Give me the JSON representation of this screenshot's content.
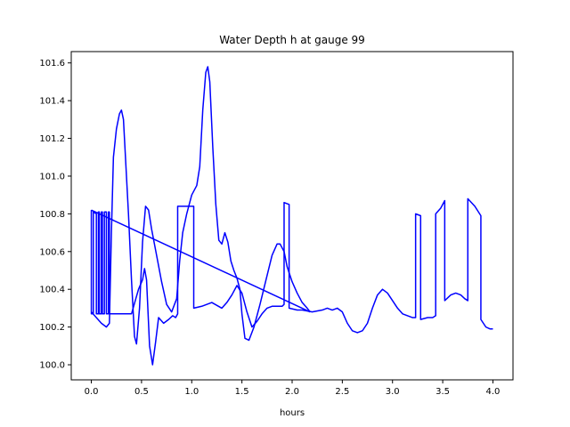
{
  "chart_data": {
    "type": "line",
    "title": "Water Depth h at gauge 99",
    "xlabel": "hours",
    "ylabel": "",
    "xlim": [
      -0.2,
      4.2
    ],
    "ylim": [
      99.92,
      101.66
    ],
    "grid": false,
    "legend": "none",
    "color": "#0000ff",
    "xticks": [
      0.0,
      0.5,
      1.0,
      1.5,
      2.0,
      2.5,
      3.0,
      3.5,
      4.0
    ],
    "xtick_labels": [
      "0.0",
      "0.5",
      "1.0",
      "1.5",
      "2.0",
      "2.5",
      "3.0",
      "3.5",
      "4.0"
    ],
    "yticks": [
      100.0,
      100.2,
      100.4,
      100.6,
      100.8,
      101.0,
      101.2,
      101.4,
      101.6
    ],
    "ytick_labels": [
      "100.0",
      "100.2",
      "100.4",
      "100.6",
      "100.8",
      "101.0",
      "101.2",
      "101.4",
      "101.6"
    ],
    "series": [
      {
        "name": "",
        "points": [
          [
            0.0,
            100.82
          ],
          [
            0.0,
            100.27
          ],
          [
            0.02,
            100.27
          ],
          [
            0.02,
            100.81
          ],
          [
            0.05,
            100.8
          ],
          [
            0.05,
            100.27
          ],
          [
            0.07,
            100.27
          ],
          [
            0.07,
            100.81
          ],
          [
            0.08,
            100.81
          ],
          [
            0.08,
            100.27
          ],
          [
            0.1,
            100.27
          ],
          [
            0.1,
            100.81
          ],
          [
            0.11,
            100.81
          ],
          [
            0.11,
            100.27
          ],
          [
            0.13,
            100.27
          ],
          [
            0.13,
            100.81
          ],
          [
            0.15,
            100.81
          ],
          [
            0.15,
            100.27
          ],
          [
            0.17,
            100.27
          ],
          [
            0.17,
            100.81
          ],
          [
            0.18,
            100.81
          ],
          [
            0.18,
            100.27
          ],
          [
            0.4,
            100.27
          ],
          [
            0.47,
            100.4
          ],
          [
            0.51,
            100.45
          ],
          [
            0.53,
            100.51
          ],
          [
            0.55,
            100.45
          ],
          [
            0.58,
            100.1
          ],
          [
            0.61,
            100.0
          ],
          [
            0.64,
            100.12
          ],
          [
            0.67,
            100.25
          ],
          [
            0.72,
            100.22
          ],
          [
            0.77,
            100.24
          ],
          [
            0.81,
            100.26
          ],
          [
            0.84,
            100.25
          ],
          [
            0.86,
            100.27
          ],
          [
            0.86,
            100.84
          ],
          [
            1.02,
            100.84
          ],
          [
            1.02,
            100.3
          ],
          [
            1.1,
            100.31
          ],
          [
            1.2,
            100.33
          ],
          [
            1.3,
            100.3
          ],
          [
            1.35,
            100.33
          ],
          [
            1.4,
            100.37
          ],
          [
            1.45,
            100.42
          ],
          [
            1.5,
            100.38
          ],
          [
            1.55,
            100.28
          ],
          [
            1.6,
            100.2
          ],
          [
            1.65,
            100.23
          ],
          [
            1.7,
            100.27
          ],
          [
            1.75,
            100.3
          ],
          [
            1.8,
            100.31
          ],
          [
            1.85,
            100.31
          ],
          [
            1.9,
            100.31
          ],
          [
            1.92,
            100.32
          ],
          [
            1.92,
            100.86
          ],
          [
            1.97,
            100.85
          ],
          [
            1.97,
            100.3
          ],
          [
            2.05,
            100.29
          ],
          [
            2.1,
            100.29
          ],
          [
            2.2,
            100.28
          ],
          [
            2.3,
            100.29
          ],
          [
            2.35,
            100.3
          ],
          [
            2.4,
            100.29
          ],
          [
            2.45,
            100.3
          ],
          [
            2.5,
            100.28
          ],
          [
            2.55,
            100.22
          ],
          [
            2.6,
            100.18
          ],
          [
            2.65,
            100.17
          ],
          [
            2.7,
            100.18
          ],
          [
            2.75,
            100.22
          ],
          [
            2.8,
            100.3
          ],
          [
            2.85,
            100.37
          ],
          [
            2.9,
            100.4
          ],
          [
            2.95,
            100.38
          ],
          [
            3.0,
            100.34
          ],
          [
            3.05,
            100.3
          ],
          [
            3.1,
            100.27
          ],
          [
            3.15,
            100.26
          ],
          [
            3.2,
            100.25
          ],
          [
            3.23,
            100.25
          ],
          [
            3.23,
            100.8
          ],
          [
            3.28,
            100.79
          ],
          [
            3.28,
            100.24
          ],
          [
            3.35,
            100.25
          ],
          [
            3.4,
            100.25
          ],
          [
            3.43,
            100.26
          ],
          [
            3.43,
            100.8
          ],
          [
            3.48,
            100.83
          ],
          [
            3.52,
            100.87
          ],
          [
            3.52,
            100.34
          ],
          [
            3.58,
            100.37
          ],
          [
            3.63,
            100.38
          ],
          [
            3.68,
            100.37
          ],
          [
            3.72,
            100.35
          ],
          [
            3.75,
            100.34
          ],
          [
            3.75,
            100.88
          ],
          [
            3.82,
            100.84
          ],
          [
            3.88,
            100.79
          ],
          [
            3.88,
            100.24
          ],
          [
            3.93,
            100.2
          ],
          [
            3.97,
            100.19
          ],
          [
            4.0,
            100.19
          ]
        ]
      },
      {
        "name": "",
        "points": [
          [
            0.0,
            100.28
          ],
          [
            0.05,
            100.25
          ],
          [
            0.1,
            100.22
          ],
          [
            0.15,
            100.2
          ],
          [
            0.18,
            100.22
          ],
          [
            0.2,
            100.7
          ],
          [
            0.22,
            101.1
          ],
          [
            0.25,
            101.25
          ],
          [
            0.28,
            101.33
          ],
          [
            0.3,
            101.35
          ],
          [
            0.32,
            101.3
          ],
          [
            0.34,
            101.1
          ],
          [
            0.37,
            100.8
          ],
          [
            0.4,
            100.45
          ],
          [
            0.43,
            100.15
          ],
          [
            0.45,
            100.11
          ],
          [
            0.48,
            100.3
          ],
          [
            0.51,
            100.65
          ],
          [
            0.54,
            100.84
          ],
          [
            0.57,
            100.82
          ],
          [
            0.6,
            100.72
          ],
          [
            0.65,
            100.58
          ],
          [
            0.7,
            100.44
          ],
          [
            0.75,
            100.32
          ],
          [
            0.8,
            100.28
          ],
          [
            0.85,
            100.35
          ],
          [
            0.88,
            100.55
          ],
          [
            0.91,
            100.7
          ],
          [
            0.95,
            100.8
          ],
          [
            1.0,
            100.9
          ],
          [
            1.05,
            100.95
          ],
          [
            1.08,
            101.05
          ],
          [
            1.11,
            101.35
          ],
          [
            1.14,
            101.55
          ],
          [
            1.16,
            101.58
          ],
          [
            1.18,
            101.5
          ],
          [
            1.21,
            101.15
          ],
          [
            1.24,
            100.85
          ],
          [
            1.27,
            100.66
          ],
          [
            1.3,
            100.64
          ],
          [
            1.33,
            100.7
          ],
          [
            1.36,
            100.65
          ],
          [
            1.39,
            100.55
          ],
          [
            1.42,
            100.5
          ],
          [
            1.45,
            100.46
          ],
          [
            1.48,
            100.4
          ],
          [
            1.5,
            100.27
          ],
          [
            1.53,
            100.14
          ],
          [
            1.57,
            100.13
          ],
          [
            1.62,
            100.2
          ],
          [
            1.68,
            100.32
          ],
          [
            1.74,
            100.45
          ],
          [
            1.8,
            100.58
          ],
          [
            1.85,
            100.64
          ],
          [
            1.88,
            100.64
          ],
          [
            1.92,
            100.6
          ],
          [
            1.95,
            100.52
          ],
          [
            2.0,
            100.44
          ],
          [
            2.05,
            100.38
          ],
          [
            2.1,
            100.33
          ],
          [
            2.15,
            100.3
          ],
          [
            2.18,
            100.28
          ]
        ]
      },
      {
        "name": "",
        "points": [
          [
            0.0,
            100.82
          ],
          [
            2.18,
            100.28
          ]
        ]
      }
    ]
  }
}
